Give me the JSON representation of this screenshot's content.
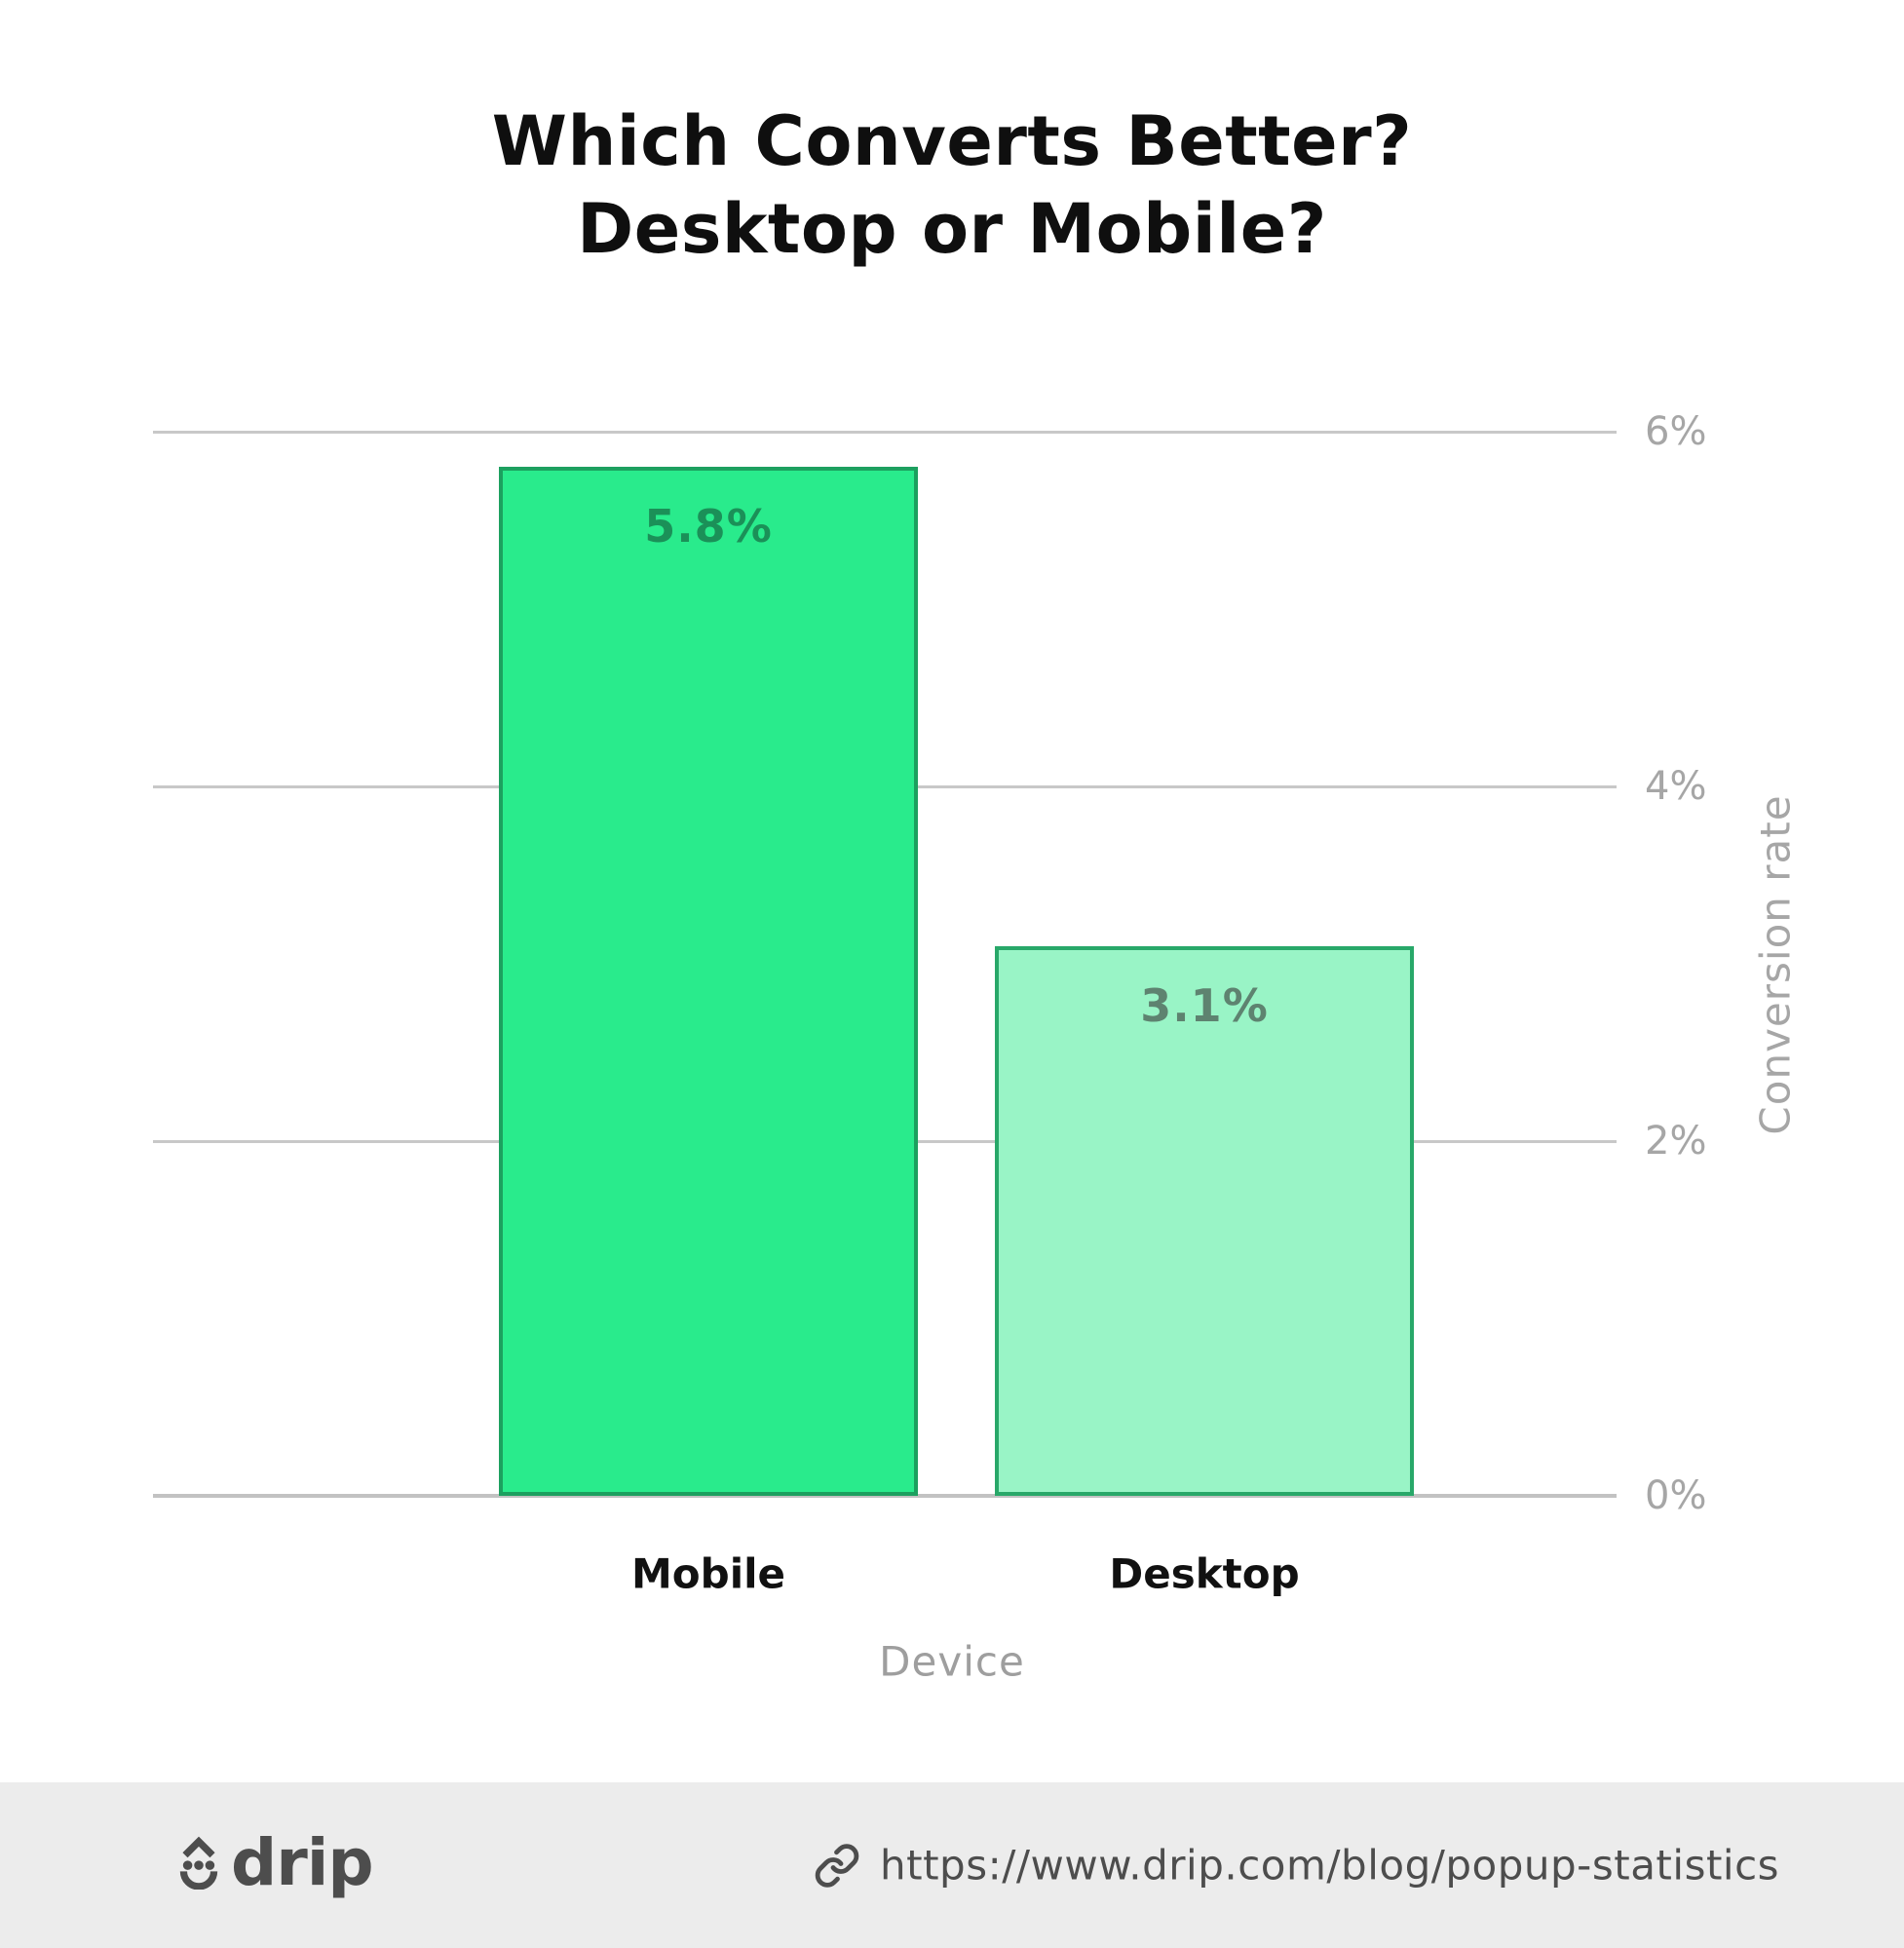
{
  "title": {
    "line1": "Which Converts Better?",
    "line2": "Desktop or Mobile?"
  },
  "chart_data": {
    "type": "bar",
    "title": "Which Converts Better? Desktop or Mobile?",
    "categories": [
      "Mobile",
      "Desktop"
    ],
    "values": [
      5.8,
      3.1
    ],
    "value_labels": [
      "5.8%",
      "3.1%"
    ],
    "xlabel": "Device",
    "ylabel": "Conversion rate",
    "ylim": [
      0,
      6
    ],
    "yticks": [
      0,
      2,
      4,
      6
    ],
    "ytick_labels": [
      "0%",
      "2%",
      "4%",
      "6%"
    ],
    "grid": true,
    "legend": "none",
    "series_colors": [
      {
        "fill": "#29EB8C",
        "border": "#1CA05F",
        "label_color": "#1B9058"
      },
      {
        "fill": "#99F4C6",
        "border": "#28A869",
        "label_color": "#5E8370"
      }
    ]
  },
  "footer": {
    "brand": "drip",
    "url": "https://www.drip.com/blog/popup-statistics"
  },
  "colors": {
    "background": "#FFFFFF",
    "footer_background": "#ECECEC",
    "gridline": "#C8C8C8",
    "axis_text": "#A6A6A6",
    "category_text": "#111111",
    "title_text": "#0F0F0F",
    "brand_text": "#4D4D4D"
  }
}
